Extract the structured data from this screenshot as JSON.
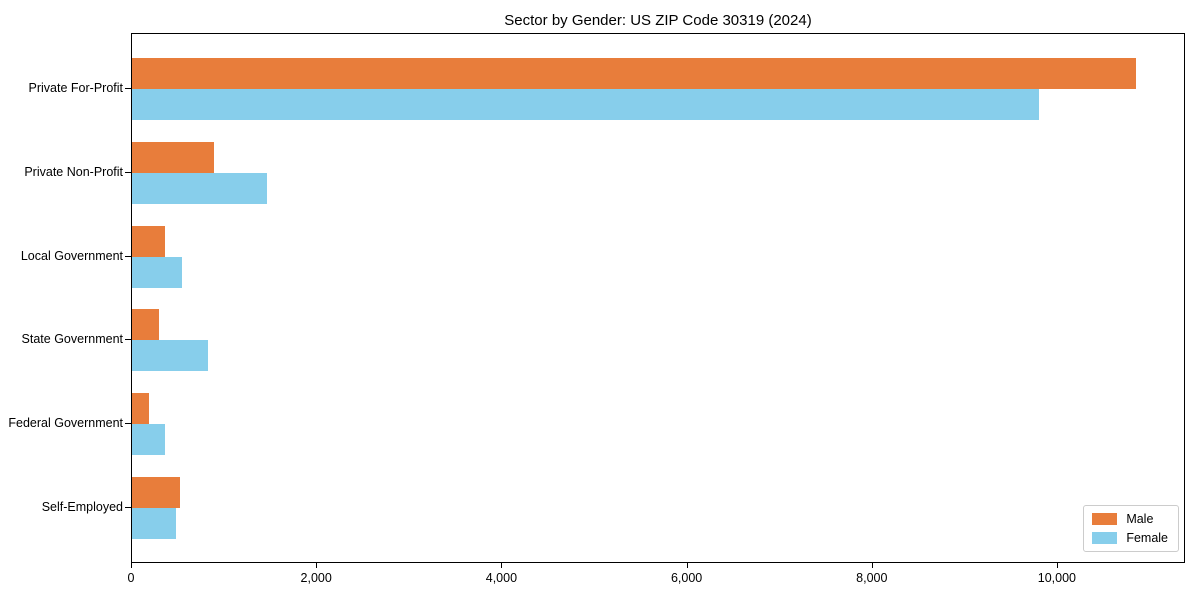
{
  "title": "Sector by Gender: US ZIP Code 30319 (2024)",
  "chart_data": {
    "type": "bar",
    "orientation": "horizontal",
    "title": "Sector by Gender: US ZIP Code 30319 (2024)",
    "categories": [
      "Private For-Profit",
      "Private Non-Profit",
      "Local Government",
      "State Government",
      "Federal Government",
      "Self-Employed"
    ],
    "series": [
      {
        "name": "Male",
        "color": "#e87d3b",
        "values": [
          10840,
          890,
          355,
          290,
          185,
          515
        ]
      },
      {
        "name": "Female",
        "color": "#87ceeb",
        "values": [
          9800,
          1460,
          540,
          820,
          355,
          475
        ]
      }
    ],
    "xlabel": "",
    "ylabel": "",
    "xlim": [
      0,
      11383
    ],
    "x_ticks": {
      "values": [
        0,
        2000,
        4000,
        6000,
        8000,
        10000
      ],
      "labels": [
        "0",
        "2,000",
        "4,000",
        "6,000",
        "8,000",
        "10,000"
      ]
    },
    "grid": false,
    "legend": {
      "position": "lower right",
      "entries": [
        "Male",
        "Female"
      ]
    },
    "colors": {
      "spine": "#000000",
      "text": "#000000",
      "legend_border": "#cccccc"
    }
  }
}
